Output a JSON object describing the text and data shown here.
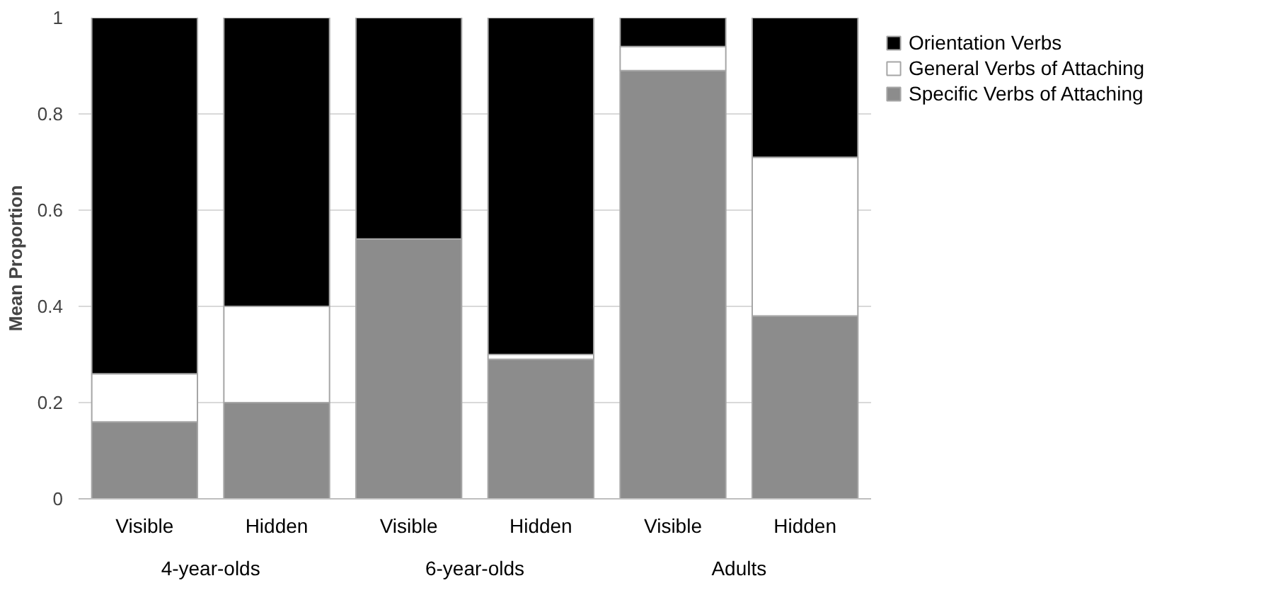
{
  "chart_data": {
    "type": "bar",
    "stacked": true,
    "ylabel": "Mean Proportion",
    "categories": [
      "Visible",
      "Hidden",
      "Visible",
      "Hidden",
      "Visible",
      "Hidden"
    ],
    "annotations": [
      "4-year-olds",
      "6-year-olds",
      "Adults"
    ],
    "series": [
      {
        "name": "Specific Verbs of Attaching",
        "color": "#8c8c8c",
        "values": [
          0.16,
          0.2,
          0.54,
          0.29,
          0.89,
          0.38
        ]
      },
      {
        "name": "General Verbs of Attaching",
        "color": "#ffffff",
        "values": [
          0.1,
          0.2,
          0,
          0.01,
          0.05,
          0.33
        ]
      },
      {
        "name": "Orientation Verbs",
        "color": "#000000",
        "values": [
          0.74,
          0.6,
          0.46,
          0.7,
          0.06,
          0.29
        ]
      }
    ],
    "ylim": [
      0,
      1
    ],
    "yticks": [
      0,
      0.2,
      0.4,
      0.6,
      0.8,
      1
    ],
    "grid": "y",
    "legend": "top right"
  }
}
